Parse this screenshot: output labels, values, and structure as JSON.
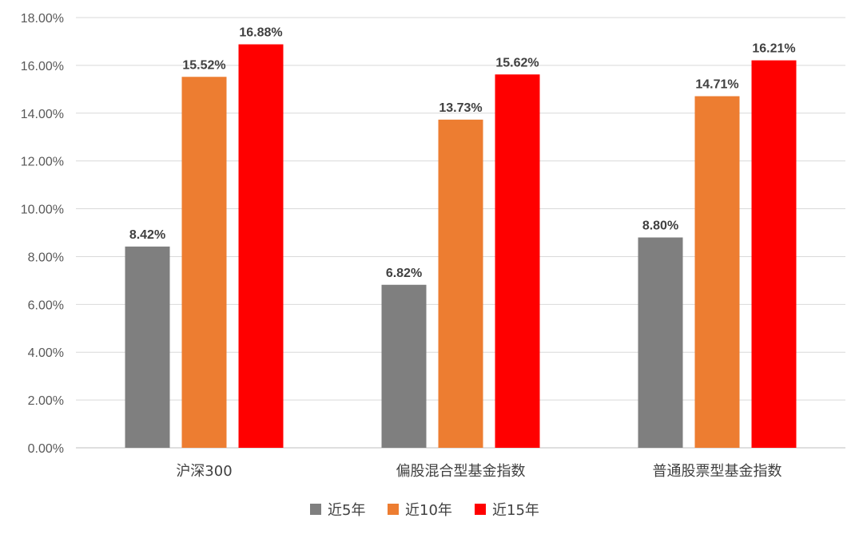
{
  "chart_data": {
    "type": "bar",
    "categories": [
      "沪深300",
      "偏股混合型基金指数",
      "普通股票型基金指数"
    ],
    "series": [
      {
        "name": "近5年",
        "values": [
          8.42,
          6.82,
          8.8
        ],
        "color": "#7f7f7f",
        "labels": [
          "8.42%",
          "6.82%",
          "8.80%"
        ]
      },
      {
        "name": "近10年",
        "values": [
          15.52,
          13.73,
          14.71
        ],
        "color": "#ed7d31",
        "labels": [
          "15.52%",
          "13.73%",
          "14.71%"
        ]
      },
      {
        "name": "近15年",
        "values": [
          16.88,
          15.62,
          16.21
        ],
        "color": "#ff0000",
        "labels": [
          "16.88%",
          "15.62%",
          "16.21%"
        ]
      }
    ],
    "y_ticks": [
      "0.00%",
      "2.00%",
      "4.00%",
      "6.00%",
      "8.00%",
      "10.00%",
      "12.00%",
      "14.00%",
      "16.00%",
      "18.00%"
    ],
    "ylim": [
      0,
      18
    ],
    "grid": true,
    "legend_position": "bottom"
  }
}
